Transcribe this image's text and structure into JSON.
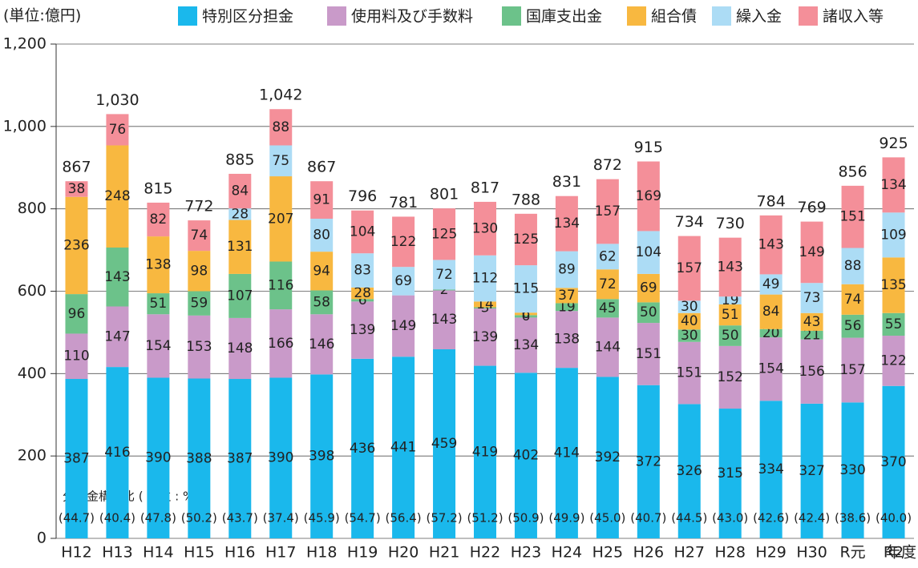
{
  "chart_data": {
    "type": "stacked_bar",
    "unit_label": "(単位:億円)",
    "x_unit": "年度",
    "categories": [
      "H12",
      "H13",
      "H14",
      "H15",
      "H16",
      "H17",
      "H18",
      "H19",
      "H20",
      "H21",
      "H22",
      "H23",
      "H24",
      "H25",
      "H26",
      "H27",
      "H28",
      "H29",
      "H30",
      "R元",
      "R2"
    ],
    "series": [
      {
        "name": "特別区分担金",
        "color": "#1ab8ec",
        "values": [
          387,
          416,
          390,
          388,
          387,
          390,
          398,
          436,
          441,
          459,
          419,
          402,
          414,
          392,
          372,
          326,
          315,
          334,
          327,
          330,
          370
        ]
      },
      {
        "name": "使用料及び手数料",
        "color": "#c99ac9",
        "values": [
          110,
          147,
          154,
          153,
          148,
          166,
          146,
          139,
          149,
          143,
          139,
          134,
          138,
          144,
          151,
          151,
          152,
          154,
          156,
          157,
          122
        ]
      },
      {
        "name": "国庫支出金",
        "color": "#6cc28a",
        "values": [
          96,
          143,
          51,
          59,
          107,
          116,
          58,
          6,
          null,
          2,
          3,
          6,
          19,
          45,
          50,
          30,
          50,
          20,
          21,
          56,
          55
        ]
      },
      {
        "name": "組合債",
        "color": "#f8b840",
        "values": [
          236,
          248,
          138,
          98,
          131,
          207,
          94,
          28,
          null,
          null,
          14,
          6,
          37,
          72,
          69,
          40,
          51,
          84,
          43,
          74,
          135
        ]
      },
      {
        "name": "繰入金",
        "color": "#acdcf5",
        "values": [
          null,
          null,
          null,
          null,
          28,
          75,
          80,
          83,
          69,
          72,
          112,
          115,
          89,
          62,
          104,
          30,
          19,
          49,
          73,
          88,
          109
        ]
      },
      {
        "name": "諸収入等",
        "color": "#f48f99",
        "values": [
          38,
          76,
          82,
          74,
          84,
          88,
          91,
          104,
          122,
          125,
          130,
          125,
          134,
          157,
          169,
          157,
          143,
          143,
          149,
          151,
          134
        ]
      }
    ],
    "totals": {
      "values": [
        867,
        1030,
        815,
        772,
        885,
        1042,
        867,
        796,
        781,
        801,
        817,
        788,
        831,
        872,
        915,
        734,
        730,
        784,
        769,
        856,
        925
      ],
      "value_labels": [
        "867",
        "1,030",
        "815",
        "772",
        "885",
        "1,042",
        "867",
        "796",
        "781",
        "801",
        "817",
        "788",
        "831",
        "872",
        "915",
        "734",
        "730",
        "784",
        "769",
        "856",
        "925"
      ]
    },
    "ratios": {
      "label": "分担金構成比 ( 単位 : %)",
      "values": [
        44.7,
        40.4,
        47.8,
        50.2,
        43.7,
        37.4,
        45.9,
        54.7,
        56.4,
        57.2,
        51.2,
        50.9,
        49.9,
        45.0,
        40.7,
        44.5,
        43.0,
        42.6,
        42.4,
        38.6,
        40.0
      ],
      "value_labels": [
        "(44.7)",
        "(40.4)",
        "(47.8)",
        "(50.2)",
        "(43.7)",
        "(37.4)",
        "(45.9)",
        "(54.7)",
        "(56.4)",
        "(57.2)",
        "(51.2)",
        "(50.9)",
        "(49.9)",
        "(45.0)",
        "(40.7)",
        "(44.5)",
        "(43.0)",
        "(42.6)",
        "(42.4)",
        "(38.6)",
        "(40.0)"
      ]
    },
    "ylim": [
      0,
      1200
    ],
    "yticks": [
      0,
      200,
      400,
      600,
      800,
      {
        "value": 1000,
        "label": "1,000"
      },
      {
        "value": 1200,
        "label": "1,200"
      }
    ],
    "grid": true
  }
}
